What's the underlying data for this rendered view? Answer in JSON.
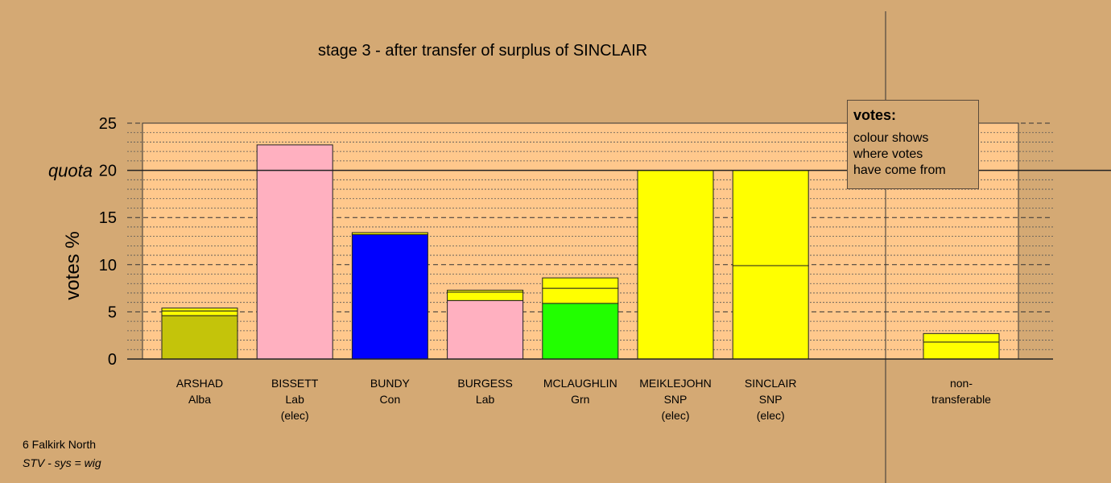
{
  "chart_data": {
    "type": "bar",
    "title": "stage 3 - after transfer of surplus of SINCLAIR",
    "ylabel": "votes %",
    "quota_label": "quota",
    "quota": 20,
    "ylim": [
      0,
      25
    ],
    "yticks": [
      "0",
      "5",
      "10",
      "15",
      "20",
      "25"
    ],
    "colors": {
      "Alba": "#c4c40a",
      "Lab": "#ffb0c0",
      "Con": "#0000ff",
      "Grn": "#22ff00",
      "SNP": "#ffff00"
    },
    "candidates": [
      {
        "name": "ARSHAD",
        "party": "Alba",
        "note": "",
        "segments": [
          {
            "from": "Alba",
            "value": 4.6
          },
          {
            "from": "SNP",
            "value": 0.5
          },
          {
            "from": "SNP",
            "value": 0.3
          }
        ]
      },
      {
        "name": "BISSETT",
        "party": "Lab",
        "note": "(elec)",
        "segments": [
          {
            "from": "Lab",
            "value": 22.7
          }
        ]
      },
      {
        "name": "BUNDY",
        "party": "Con",
        "note": "",
        "segments": [
          {
            "from": "Con",
            "value": 13.2
          },
          {
            "from": "SNP",
            "value": 0.2
          }
        ]
      },
      {
        "name": "BURGESS",
        "party": "Lab",
        "note": "",
        "segments": [
          {
            "from": "Lab",
            "value": 6.2
          },
          {
            "from": "SNP",
            "value": 0.9
          },
          {
            "from": "SNP",
            "value": 0.2
          }
        ]
      },
      {
        "name": "MCLAUGHLIN",
        "party": "Grn",
        "note": "",
        "segments": [
          {
            "from": "Grn",
            "value": 5.9
          },
          {
            "from": "SNP",
            "value": 1.6
          },
          {
            "from": "SNP",
            "value": 1.1
          }
        ]
      },
      {
        "name": "MEIKLEJOHN",
        "party": "SNP",
        "note": "(elec)",
        "segments": [
          {
            "from": "SNP",
            "value": 20.0
          }
        ]
      },
      {
        "name": "SINCLAIR",
        "party": "SNP",
        "note": "(elec)",
        "segments": [
          {
            "from": "SNP",
            "value": 9.9
          },
          {
            "from": "SNP",
            "value": 10.1
          }
        ]
      }
    ],
    "nontransferable": {
      "name": "non-",
      "name2": "transferable",
      "segments": [
        {
          "from": "SNP",
          "value": 1.8
        },
        {
          "from": "SNP",
          "value": 0.9
        }
      ]
    }
  },
  "legend": {
    "heading": "votes:",
    "lines": [
      "colour shows",
      "where votes",
      "have come from"
    ]
  },
  "footer": {
    "constituency": "6 Falkirk North",
    "system": "STV - sys = wig"
  }
}
